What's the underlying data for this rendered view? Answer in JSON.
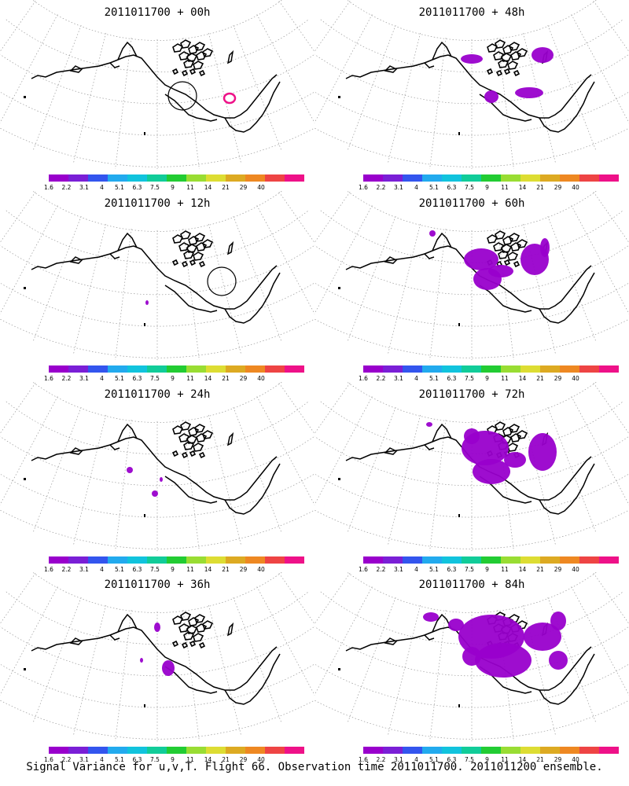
{
  "panels": [
    {
      "title": "2011011700 + 00h",
      "blobs": [],
      "circle": [
        232,
        122
      ],
      "hotspot": [
        292,
        125
      ]
    },
    {
      "title": "2011011700 + 48h",
      "blobs": [
        [
          600,
          75,
          14,
          6
        ],
        [
          690,
          70,
          14,
          10
        ],
        [
          625,
          123,
          9,
          8
        ],
        [
          673,
          118,
          18,
          7
        ]
      ],
      "circle": null,
      "hotspot": null
    },
    {
      "title": "2011011700 + 12h",
      "blobs": [
        [
          187,
          385,
          2,
          3
        ]
      ],
      "circle": [
        282,
        358
      ],
      "hotspot": null
    },
    {
      "title": "2011011700 + 60h",
      "blobs": [
        [
          550,
          297,
          4,
          4
        ],
        [
          612,
          330,
          22,
          14
        ],
        [
          620,
          355,
          18,
          14
        ],
        [
          680,
          330,
          18,
          20
        ],
        [
          693,
          315,
          6,
          12
        ],
        [
          637,
          345,
          16,
          8
        ]
      ],
      "circle": null,
      "hotspot": null
    },
    {
      "title": "2011011700 + 24h",
      "blobs": [
        [
          165,
          598,
          4,
          4
        ],
        [
          197,
          628,
          4,
          4
        ],
        [
          205,
          610,
          2,
          3
        ]
      ],
      "circle": null,
      "hotspot": null
    },
    {
      "title": "2011011700 + 72h",
      "blobs": [
        [
          546,
          540,
          4,
          3
        ],
        [
          617,
          570,
          30,
          22
        ],
        [
          625,
          600,
          24,
          16
        ],
        [
          690,
          575,
          18,
          24
        ],
        [
          655,
          585,
          14,
          10
        ],
        [
          600,
          555,
          10,
          10
        ]
      ],
      "circle": null,
      "hotspot": null
    },
    {
      "title": "2011011700 + 36h",
      "blobs": [
        [
          200,
          798,
          4,
          6
        ],
        [
          214,
          850,
          8,
          10
        ],
        [
          180,
          840,
          2,
          3
        ]
      ],
      "circle": null,
      "hotspot": null
    },
    {
      "title": "2011011700 + 84h",
      "blobs": [
        [
          548,
          785,
          10,
          6
        ],
        [
          625,
          810,
          42,
          28
        ],
        [
          640,
          840,
          36,
          22
        ],
        [
          690,
          810,
          24,
          18
        ],
        [
          710,
          790,
          10,
          12
        ],
        [
          600,
          835,
          12,
          12
        ],
        [
          710,
          840,
          12,
          12
        ],
        [
          580,
          795,
          10,
          8
        ]
      ],
      "circle": null,
      "hotspot": null
    }
  ],
  "colorbar": {
    "labels": [
      "1.6",
      "2.2",
      "3.1",
      "4",
      "5.1",
      "6.3",
      "7.5",
      "9",
      "11",
      "14",
      "21",
      "29",
      "40"
    ],
    "colors": [
      "#9900cc",
      "#7a1fd6",
      "#3355ee",
      "#22aaee",
      "#11c3dd",
      "#11cc99",
      "#22cc33",
      "#99dd33",
      "#dddd33",
      "#ddaa22",
      "#ee8822",
      "#ee4444",
      "#ee1188"
    ]
  },
  "caption": "Signal Variance for u,v,T. Flight 66. Observation time 2011011700. 2011011200 ensemble."
}
